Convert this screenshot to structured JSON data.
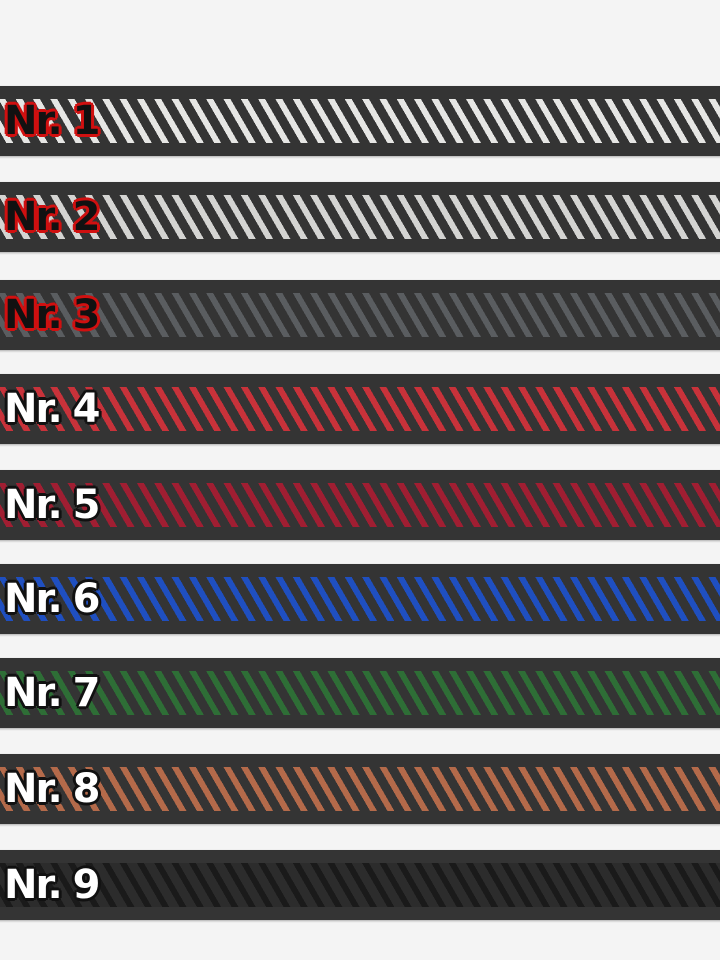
{
  "ribbons": [
    {
      "label": "Nr. 1",
      "stripe_color": "#e6e6e4",
      "label_style": "red"
    },
    {
      "label": "Nr. 2",
      "stripe_color": "#d4d4d2",
      "label_style": "red"
    },
    {
      "label": "Nr. 3",
      "stripe_color": "#5a5d60",
      "label_style": "red"
    },
    {
      "label": "Nr. 4",
      "stripe_color": "#c8323a",
      "label_style": "white"
    },
    {
      "label": "Nr. 5",
      "stripe_color": "#a01e32",
      "label_style": "white"
    },
    {
      "label": "Nr. 6",
      "stripe_color": "#1f4fc0",
      "label_style": "white"
    },
    {
      "label": "Nr. 7",
      "stripe_color": "#2e6e36",
      "label_style": "white"
    },
    {
      "label": "Nr. 8",
      "stripe_color": "#b46a4a",
      "label_style": "white"
    },
    {
      "label": "Nr. 9",
      "stripe_color": "#1e1e1e",
      "label_style": "white"
    }
  ],
  "base_color": "#343434",
  "background_color": "#f4f4f4"
}
